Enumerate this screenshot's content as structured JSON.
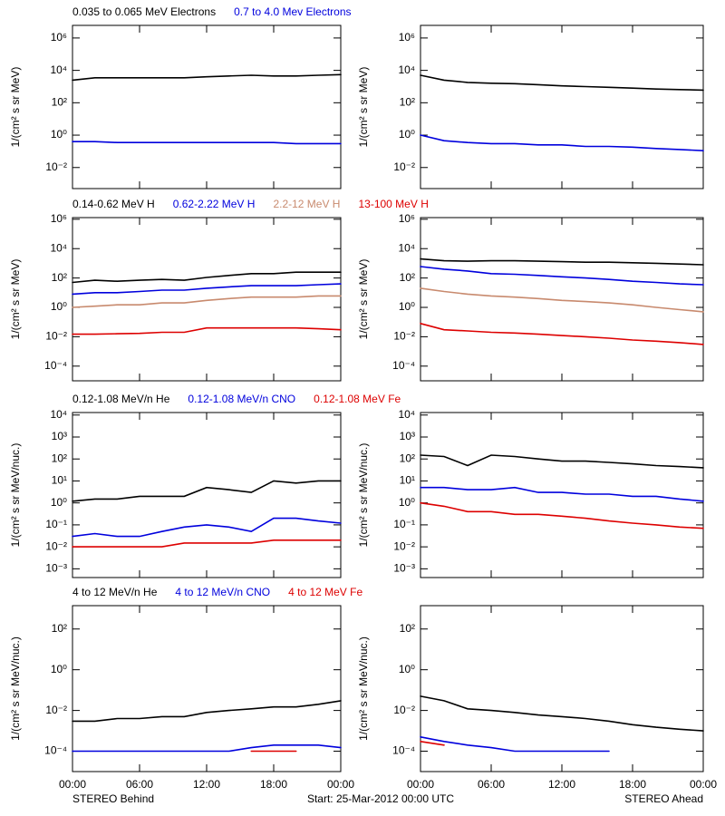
{
  "chart_data": {
    "type": "line",
    "y_scale": "log",
    "x": [
      0,
      2,
      4,
      6,
      8,
      10,
      12,
      14,
      16,
      18,
      20,
      22,
      24
    ],
    "xlim": [
      0,
      24
    ],
    "xticks": [
      {
        "value": 0,
        "label": "00:00"
      },
      {
        "value": 6,
        "label": "06:00"
      },
      {
        "value": 12,
        "label": "12:00"
      },
      {
        "value": 18,
        "label": "18:00"
      },
      {
        "value": 24,
        "label": "00:00"
      }
    ],
    "left_label": "STEREO Behind",
    "center_label": "Start: 25-Mar-2012 00:00 UTC",
    "right_label": "STEREO Ahead",
    "rows": [
      {
        "ylabel": "1/(cm² s sr MeV)",
        "ylim": [
          0.0005,
          6000000
        ],
        "yticks": [
          {
            "value": 0.01,
            "label": "10⁻²"
          },
          {
            "value": 1,
            "label": "10⁰"
          },
          {
            "value": 100,
            "label": "10²"
          },
          {
            "value": 10000,
            "label": "10⁴"
          },
          {
            "value": 1000000,
            "label": "10⁶"
          }
        ],
        "series": [
          {
            "name": "0.035 to 0.065 MeV Electrons",
            "color": "#000000",
            "values": [
              2500,
              3500,
              3500,
              3500,
              3500,
              3500,
              4000,
              4500,
              5000,
              4500,
              4500,
              5000,
              5500
            ],
            "values_ahead": [
              5000,
              2500,
              1800,
              1600,
              1500,
              1300,
              1100,
              1000,
              900,
              800,
              700,
              650,
              600
            ]
          },
          {
            "name": "0.7 to 4.0 Mev Electrons",
            "color": "#0000dd",
            "values": [
              0.4,
              0.4,
              0.35,
              0.35,
              0.35,
              0.35,
              0.35,
              0.35,
              0.35,
              0.35,
              0.3,
              0.3,
              0.3
            ],
            "values_ahead": [
              1,
              0.45,
              0.35,
              0.3,
              0.3,
              0.25,
              0.25,
              0.2,
              0.2,
              0.18,
              0.15,
              0.13,
              0.11
            ]
          }
        ]
      },
      {
        "ylabel": "1/(cm² s sr MeV)",
        "ylim": [
          1e-05,
          1300000
        ],
        "yticks": [
          {
            "value": 0.0001,
            "label": "10⁻⁴"
          },
          {
            "value": 0.01,
            "label": "10⁻²"
          },
          {
            "value": 1,
            "label": "10⁰"
          },
          {
            "value": 100,
            "label": "10²"
          },
          {
            "value": 10000,
            "label": "10⁴"
          },
          {
            "value": 1000000,
            "label": "10⁶"
          }
        ],
        "series": [
          {
            "name": "0.14-0.62 MeV H",
            "color": "#000000",
            "values": [
              50,
              70,
              60,
              70,
              80,
              70,
              110,
              150,
              200,
              200,
              250,
              250,
              250
            ],
            "values_ahead": [
              2000,
              1500,
              1400,
              1500,
              1500,
              1400,
              1300,
              1200,
              1200,
              1100,
              1000,
              900,
              800
            ]
          },
          {
            "name": "0.62-2.22 MeV H",
            "color": "#0000dd",
            "values": [
              8,
              10,
              10,
              12,
              15,
              15,
              20,
              25,
              30,
              30,
              30,
              35,
              40
            ],
            "values_ahead": [
              600,
              400,
              300,
              200,
              180,
              150,
              120,
              100,
              80,
              60,
              50,
              40,
              35
            ]
          },
          {
            "name": "2.2-12 MeV H",
            "color": "#c88a6e",
            "values": [
              1,
              1.2,
              1.5,
              1.5,
              2,
              2,
              3,
              4,
              5,
              5,
              5,
              6,
              6
            ],
            "values_ahead": [
              20,
              12,
              8,
              6,
              5,
              4,
              3,
              2.5,
              2,
              1.5,
              1,
              0.7,
              0.5
            ]
          },
          {
            "name": "13-100 MeV H",
            "color": "#dd0000",
            "values": [
              0.015,
              0.015,
              0.016,
              0.017,
              0.02,
              0.02,
              0.04,
              0.04,
              0.04,
              0.04,
              0.04,
              0.035,
              0.03
            ],
            "values_ahead": [
              0.08,
              0.03,
              0.025,
              0.02,
              0.018,
              0.015,
              0.012,
              0.01,
              0.008,
              0.006,
              0.005,
              0.004,
              0.003
            ]
          }
        ]
      },
      {
        "ylabel": "1/(cm² s sr MeV/nuc.)",
        "ylim": [
          0.0004,
          13000
        ],
        "yticks": [
          {
            "value": 0.001,
            "label": "10⁻³"
          },
          {
            "value": 0.01,
            "label": "10⁻²"
          },
          {
            "value": 0.1,
            "label": "10⁻¹"
          },
          {
            "value": 1,
            "label": "10⁰"
          },
          {
            "value": 10,
            "label": "10¹"
          },
          {
            "value": 100,
            "label": "10²"
          },
          {
            "value": 1000,
            "label": "10³"
          },
          {
            "value": 10000,
            "label": "10⁴"
          }
        ],
        "series": [
          {
            "name": "0.12-1.08 MeV/n He",
            "color": "#000000",
            "values": [
              1.2,
              1.5,
              1.5,
              2,
              2,
              2,
              5,
              4,
              3,
              10,
              8,
              10,
              10
            ],
            "values_ahead": [
              150,
              130,
              50,
              150,
              130,
              100,
              80,
              80,
              70,
              60,
              50,
              45,
              40
            ]
          },
          {
            "name": "0.12-1.08 MeV/n CNO",
            "color": "#0000dd",
            "values": [
              0.03,
              0.04,
              0.03,
              0.03,
              0.05,
              0.08,
              0.1,
              0.08,
              0.05,
              0.2,
              0.2,
              0.15,
              0.12
            ],
            "values_ahead": [
              5,
              5,
              4,
              4,
              5,
              3,
              3,
              2.5,
              2.5,
              2,
              2,
              1.5,
              1.2
            ]
          },
          {
            "name": "0.12-1.08 MeV Fe",
            "color": "#dd0000",
            "values": [
              0.01,
              0.01,
              0.01,
              0.01,
              0.01,
              0.015,
              0.015,
              0.015,
              0.015,
              0.02,
              0.02,
              0.02,
              0.02
            ],
            "values_ahead": [
              1,
              0.7,
              0.4,
              0.4,
              0.3,
              0.3,
              0.25,
              0.2,
              0.15,
              0.12,
              0.1,
              0.08,
              0.07
            ]
          }
        ]
      },
      {
        "ylabel": "1/(cm² s sr MeV/nuc.)",
        "ylim": [
          1e-05,
          1400
        ],
        "yticks": [
          {
            "value": 0.0001,
            "label": "10⁻⁴"
          },
          {
            "value": 0.01,
            "label": "10⁻²"
          },
          {
            "value": 1,
            "label": "10⁰"
          },
          {
            "value": 100,
            "label": "10²"
          }
        ],
        "series": [
          {
            "name": "4 to 12 MeV/n He",
            "color": "#000000",
            "values": [
              0.003,
              0.003,
              0.004,
              0.004,
              0.005,
              0.005,
              0.008,
              0.01,
              0.012,
              0.015,
              0.015,
              0.02,
              0.03
            ],
            "values_ahead": [
              0.05,
              0.03,
              0.012,
              0.01,
              0.008,
              0.006,
              0.005,
              0.004,
              0.003,
              0.002,
              0.0015,
              0.0012,
              0.001
            ]
          },
          {
            "name": "4 to 12 MeV/n CNO",
            "color": "#0000dd",
            "values": [
              0.0001,
              0.0001,
              0.0001,
              0.0001,
              0.0001,
              0.0001,
              0.0001,
              0.0001,
              0.00015,
              0.0002,
              0.0002,
              0.0002,
              0.00015
            ],
            "values_ahead": [
              0.0005,
              0.0003,
              0.0002,
              0.00015,
              0.0001,
              0.0001,
              0.0001,
              0.0001,
              0.0001,
              null,
              null,
              null,
              null
            ]
          },
          {
            "name": "4 to 12 MeV Fe",
            "color": "#dd0000",
            "values": [
              null,
              null,
              null,
              null,
              null,
              null,
              null,
              null,
              0.0001,
              0.0001,
              0.0001,
              null,
              null
            ],
            "values_ahead": [
              0.0003,
              0.0002,
              null,
              null,
              null,
              null,
              null,
              null,
              null,
              null,
              null,
              null,
              null
            ]
          }
        ]
      }
    ]
  }
}
